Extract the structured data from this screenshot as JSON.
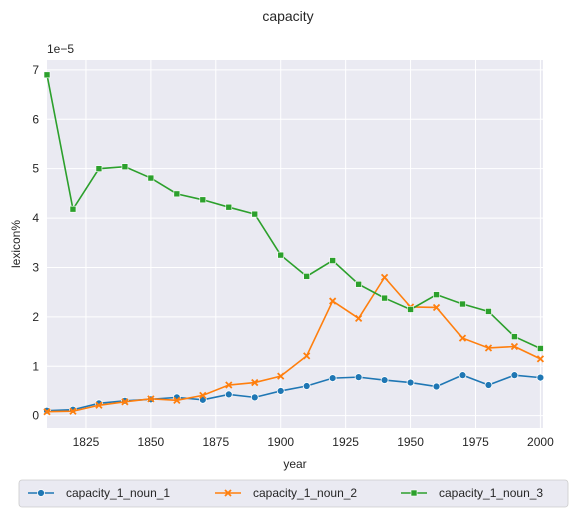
{
  "chart_data": {
    "type": "line",
    "title": "capacity",
    "xlabel": "year",
    "ylabel": "lexicon%",
    "y_multiplier_label": "1e−5",
    "xlim": [
      1810,
      2001
    ],
    "ylim": [
      -0.25,
      7.2
    ],
    "x_ticks": [
      1825,
      1850,
      1875,
      1900,
      1925,
      1950,
      1975,
      2000
    ],
    "y_ticks": [
      0,
      1,
      2,
      3,
      4,
      5,
      6,
      7
    ],
    "grid": true,
    "legend_position": "bottom",
    "x": [
      1810,
      1820,
      1830,
      1840,
      1850,
      1860,
      1870,
      1880,
      1890,
      1900,
      1910,
      1920,
      1930,
      1940,
      1950,
      1960,
      1970,
      1980,
      1990,
      2000
    ],
    "series": [
      {
        "name": "capacity_1_noun_1",
        "color": "#1f77b4",
        "marker": "circle",
        "values": [
          0.1,
          0.12,
          0.25,
          0.3,
          0.33,
          0.37,
          0.32,
          0.43,
          0.37,
          0.5,
          0.6,
          0.76,
          0.78,
          0.72,
          0.67,
          0.59,
          0.82,
          0.62,
          0.82,
          0.77
        ]
      },
      {
        "name": "capacity_1_noun_2",
        "color": "#ff7f0e",
        "marker": "x",
        "values": [
          0.08,
          0.09,
          0.21,
          0.28,
          0.34,
          0.31,
          0.41,
          0.62,
          0.67,
          0.8,
          1.21,
          2.32,
          1.97,
          2.8,
          2.2,
          2.19,
          1.57,
          1.37,
          1.4,
          1.15
        ]
      },
      {
        "name": "capacity_1_noun_3",
        "color": "#2ca02c",
        "marker": "square",
        "values": [
          6.9,
          4.18,
          5.0,
          5.04,
          4.81,
          4.49,
          4.37,
          4.22,
          4.08,
          3.25,
          2.82,
          3.14,
          2.66,
          2.38,
          2.15,
          2.45,
          2.26,
          2.11,
          1.6,
          1.36
        ]
      }
    ]
  }
}
